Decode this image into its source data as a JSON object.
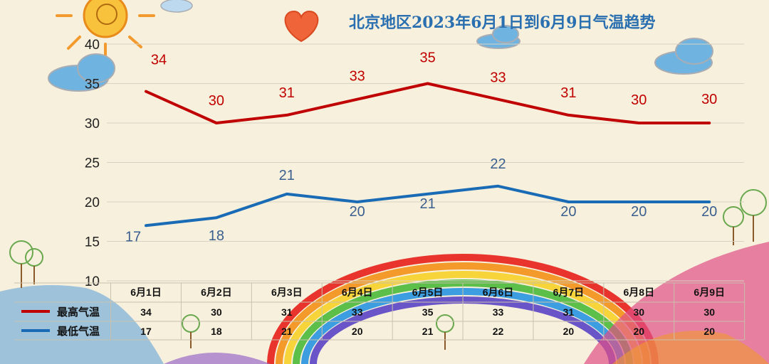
{
  "title": "北京地区2023年6月1日到6月9日气温趋势",
  "chart_data": {
    "type": "line",
    "title": "北京地区2023年6月1日到6月9日气温趋势",
    "categories": [
      "6月1日",
      "6月2日",
      "6月3日",
      "6月4日",
      "6月5日",
      "6月6日",
      "6月7日",
      "6月8日",
      "6月9日"
    ],
    "series": [
      {
        "name": "最高气温",
        "values": [
          34,
          30,
          31,
          33,
          35,
          33,
          31,
          30,
          30
        ],
        "color": "#c00000"
      },
      {
        "name": "最低气温",
        "values": [
          17,
          18,
          21,
          20,
          21,
          22,
          20,
          20,
          20
        ],
        "color": "#1a6bb5"
      }
    ],
    "ylim": [
      10,
      40
    ],
    "yticks": [
      10,
      15,
      20,
      25,
      30,
      35,
      40
    ],
    "grid": true,
    "legend": "bottom-left (data table)",
    "data_table": true
  }
}
